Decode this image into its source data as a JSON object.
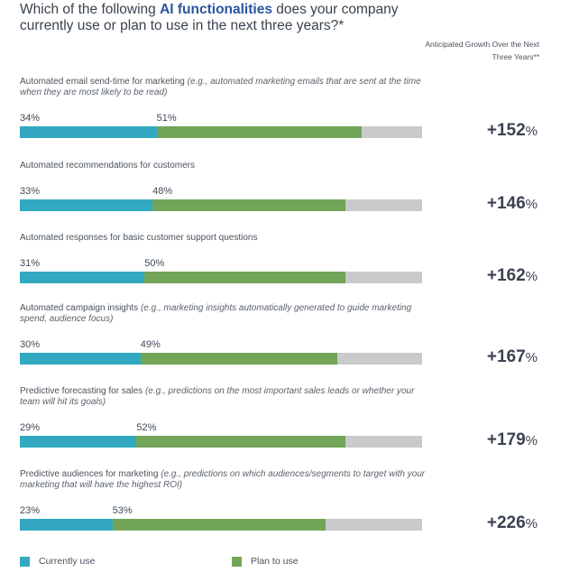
{
  "title": {
    "prefix": "Which of the following ",
    "highlight": "AI functionalities",
    "suffix": " does your company currently use or plan to use in the next three years?*"
  },
  "growth_header": "Anticipated Growth Over the Next Three Years**",
  "colors": {
    "current": "#32a9c1",
    "plan": "#72a557",
    "track": "#c8cacc"
  },
  "chart_data": {
    "type": "bar",
    "orientation": "horizontal",
    "stacked": true,
    "xlim": [
      0,
      100
    ],
    "categories": [
      "Automated email send-time for marketing",
      "Automated recommendations for customers",
      "Automated responses for basic customer support questions",
      "Automated campaign insights",
      "Predictive forecasting for sales",
      "Predictive audiences for marketing"
    ],
    "examples": [
      "(e.g., automated marketing emails that are sent at the time when they are most likely to be read)",
      "",
      "",
      "(e.g., marketing insights automatically generated to guide marketing spend, audience focus)",
      "(e.g., predictions on the most important sales leads or whether your team will hit its goals)",
      "(e.g., predictions on which audiences/segments to target with your marketing that will have the highest ROI)"
    ],
    "series": [
      {
        "name": "Currently use",
        "values": [
          34,
          33,
          31,
          30,
          29,
          23
        ]
      },
      {
        "name": "Plan to use",
        "values": [
          51,
          48,
          50,
          49,
          52,
          53
        ]
      }
    ],
    "value_labels": {
      "current": [
        "34%",
        "33%",
        "31%",
        "30%",
        "29%",
        "23%"
      ],
      "plan": [
        "51%",
        "48%",
        "50%",
        "49%",
        "52%",
        "53%"
      ]
    },
    "growth": [
      {
        "value": "+152",
        "unit": "%"
      },
      {
        "value": "+146",
        "unit": "%"
      },
      {
        "value": "+162",
        "unit": "%"
      },
      {
        "value": "+167",
        "unit": "%"
      },
      {
        "value": "+179",
        "unit": "%"
      },
      {
        "value": "+226",
        "unit": "%"
      }
    ],
    "legend": [
      "Currently use",
      "Plan to use"
    ],
    "legend_position": "bottom"
  }
}
